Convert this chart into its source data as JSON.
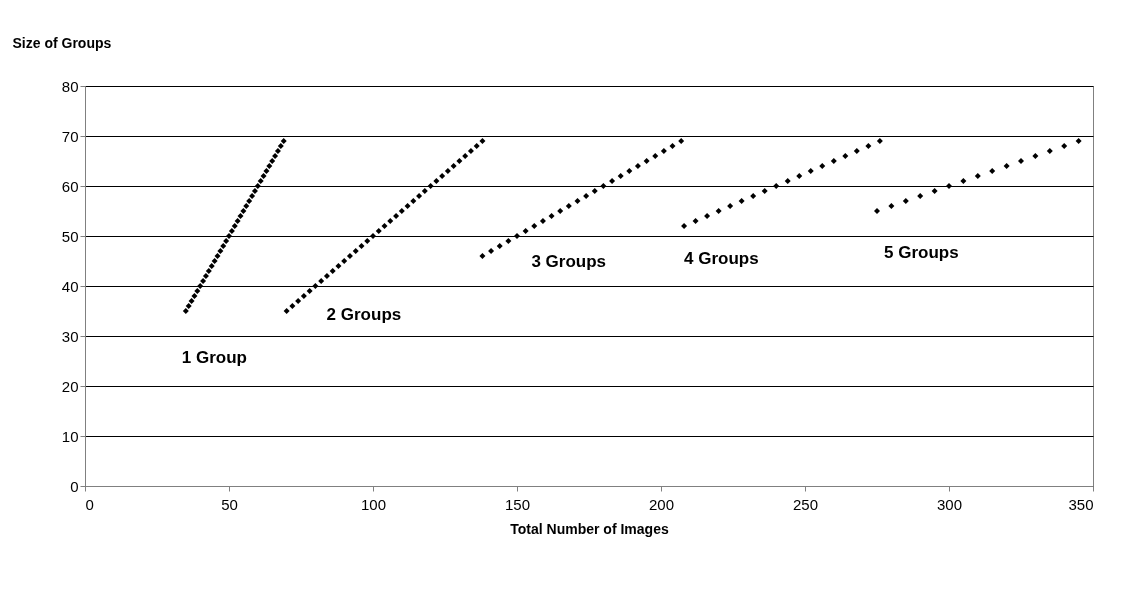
{
  "chart_data": {
    "type": "scatter",
    "xlabel": "Total Number of Images",
    "ylabel": "Size of Groups",
    "xlim": [
      0,
      350
    ],
    "xticks": [
      0,
      50,
      100,
      150,
      200,
      250,
      300,
      350
    ],
    "ylim": [
      0,
      80
    ],
    "yticks": [
      0,
      10,
      20,
      30,
      40,
      50,
      60,
      70,
      80
    ],
    "grid": "y",
    "legend": false,
    "marker": "diamond",
    "series": [
      {
        "name": "1 Group",
        "color": "#000000",
        "x": [
          35,
          36,
          37,
          38,
          39,
          40,
          41,
          42,
          43,
          44,
          45,
          46,
          47,
          48,
          49,
          50,
          51,
          52,
          53,
          54,
          55,
          56,
          57,
          58,
          59,
          60,
          61,
          62,
          63,
          64,
          65,
          66,
          67,
          68,
          69
        ],
        "values": [
          35,
          36,
          37,
          38,
          39,
          40,
          41,
          42,
          43,
          44,
          45,
          46,
          47,
          48,
          49,
          50,
          51,
          52,
          53,
          54,
          55,
          56,
          57,
          58,
          59,
          60,
          61,
          62,
          63,
          64,
          65,
          66,
          67,
          68,
          69
        ]
      },
      {
        "name": "2 Groups",
        "color": "#000000",
        "x": [
          70,
          72,
          74,
          76,
          78,
          80,
          82,
          84,
          86,
          88,
          90,
          92,
          94,
          96,
          98,
          100,
          102,
          104,
          106,
          108,
          110,
          112,
          114,
          116,
          118,
          120,
          122,
          124,
          126,
          128,
          130,
          132,
          134,
          136,
          138
        ],
        "values": [
          35,
          36,
          37,
          38,
          39,
          40,
          41,
          42,
          43,
          44,
          45,
          46,
          47,
          48,
          49,
          50,
          51,
          52,
          53,
          54,
          55,
          56,
          57,
          58,
          59,
          60,
          61,
          62,
          63,
          64,
          65,
          66,
          67,
          68,
          69
        ]
      },
      {
        "name": "3 Groups",
        "color": "#000000",
        "x": [
          138,
          141,
          144,
          147,
          150,
          153,
          156,
          159,
          162,
          165,
          168,
          171,
          174,
          177,
          180,
          183,
          186,
          189,
          192,
          195,
          198,
          201,
          204,
          207
        ],
        "values": [
          46,
          47,
          48,
          49,
          50,
          51,
          52,
          53,
          54,
          55,
          56,
          57,
          58,
          59,
          60,
          61,
          62,
          63,
          64,
          65,
          66,
          67,
          68,
          69
        ]
      },
      {
        "name": "4 Groups",
        "color": "#000000",
        "x": [
          208,
          212,
          216,
          220,
          224,
          228,
          232,
          236,
          240,
          244,
          248,
          252,
          256,
          260,
          264,
          268,
          272,
          276
        ],
        "values": [
          52,
          53,
          54,
          55,
          56,
          57,
          58,
          59,
          60,
          61,
          62,
          63,
          64,
          65,
          66,
          67,
          68,
          69
        ]
      },
      {
        "name": "5 Groups",
        "color": "#000000",
        "x": [
          275,
          280,
          285,
          290,
          295,
          300,
          305,
          310,
          315,
          320,
          325,
          330,
          335,
          340,
          345
        ],
        "values": [
          55,
          56,
          57,
          58,
          59,
          60,
          61,
          62,
          63,
          64,
          65,
          66,
          67,
          68,
          69
        ]
      }
    ]
  }
}
